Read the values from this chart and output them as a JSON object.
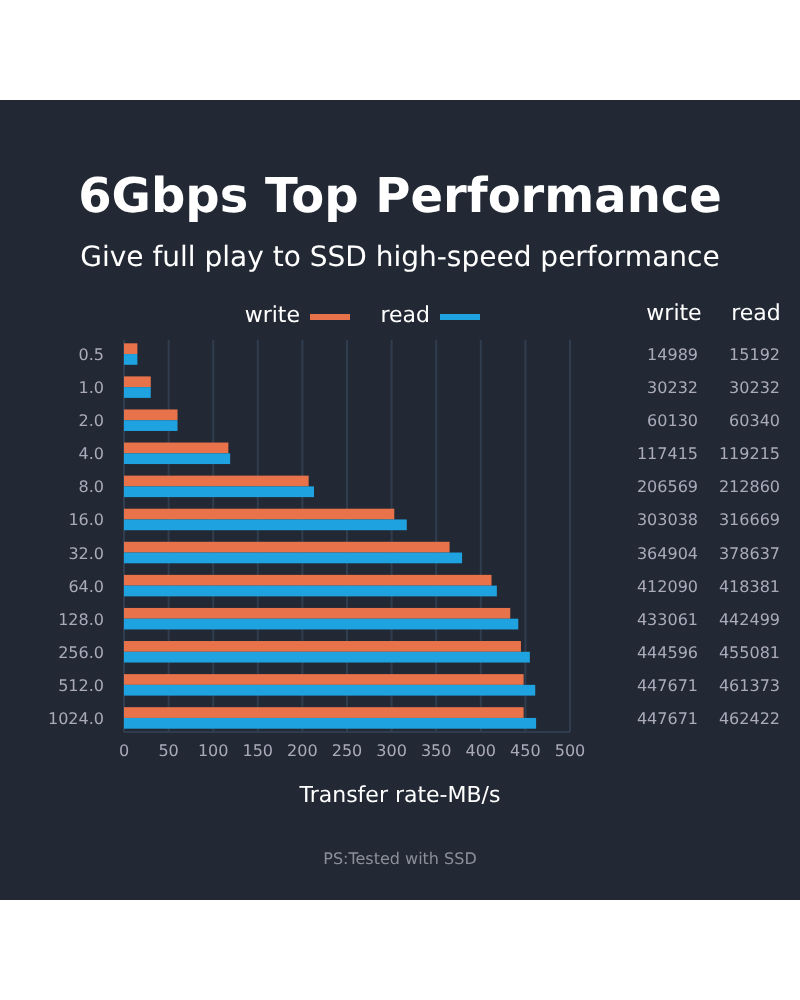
{
  "chart_data": [
    {
      "type": "bar",
      "orientation": "horizontal",
      "title": "6Gbps Top Performance",
      "subtitle": "Give full play to SSD high-speed performance",
      "xlabel": "Transfer rate-MB/s",
      "annotations": [
        "PS:Tested with SSD"
      ],
      "categories": [
        "0.5",
        "1.0",
        "2.0",
        "4.0",
        "8.0",
        "16.0",
        "32.0",
        "64.0",
        "128.0",
        "256.0",
        "512.0",
        "1024.0"
      ],
      "series": [
        {
          "name": "write",
          "color": "#e8734a",
          "values": [
            15,
            30,
            60,
            117,
            207,
            303,
            365,
            412,
            433,
            445,
            448,
            448
          ]
        },
        {
          "name": "read",
          "color": "#1fa3e0",
          "values": [
            15,
            30,
            60,
            119,
            213,
            317,
            379,
            418,
            442,
            455,
            461,
            462
          ]
        }
      ],
      "xlim": [
        0,
        500
      ],
      "xticks": [
        0,
        50,
        100,
        150,
        200,
        250,
        300,
        350,
        400,
        450,
        500
      ],
      "grid": "x",
      "legend": "top"
    },
    {
      "type": "other",
      "annotations": [
        "write",
        "read",
        "14989",
        "15192",
        "30232",
        "30232",
        "60130",
        "60340",
        "117415",
        "119215",
        "206569",
        "212860",
        "303038",
        "316669",
        "364904",
        "378637",
        "412090",
        "418381",
        "433061",
        "442499",
        "444596",
        "455081",
        "447671",
        "461373",
        "447671",
        "462422"
      ]
    }
  ]
}
